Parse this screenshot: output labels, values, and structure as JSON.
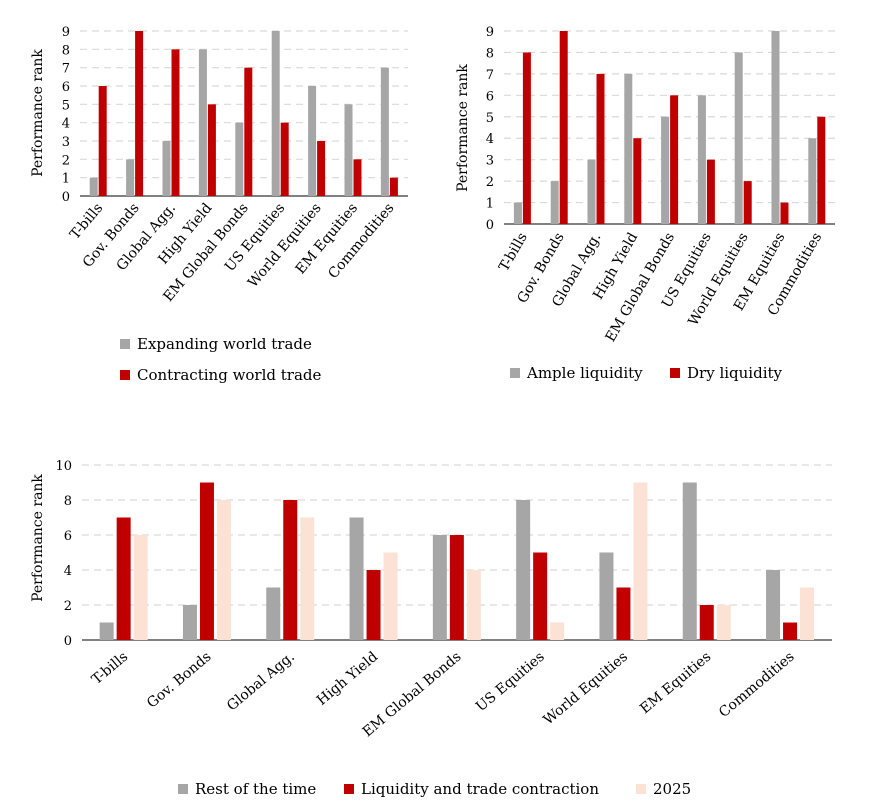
{
  "chart_data": [
    {
      "type": "bar",
      "ylabel": "Performance rank",
      "ylim": [
        0,
        9
      ],
      "yticks": [
        0,
        1,
        2,
        3,
        4,
        5,
        6,
        7,
        8,
        9
      ],
      "legend_position": "bottom",
      "categories": [
        "T-bills",
        "Gov. Bonds",
        "Global Agg.",
        "High Yield",
        "EM Global Bonds",
        "US Equities",
        "World Equities",
        "EM Equities",
        "Commodities"
      ],
      "series": [
        {
          "name": "Expanding world trade",
          "color": "#a6a6a6",
          "values": [
            1,
            2,
            3,
            8,
            4,
            9,
            6,
            5,
            7
          ]
        },
        {
          "name": "Contracting world trade",
          "color": "#c00000",
          "values": [
            6,
            9,
            8,
            5,
            7,
            4,
            3,
            2,
            1
          ]
        }
      ]
    },
    {
      "type": "bar",
      "ylabel": "Performance rank",
      "ylim": [
        0,
        9
      ],
      "yticks": [
        0,
        1,
        2,
        3,
        4,
        5,
        6,
        7,
        8,
        9
      ],
      "legend_position": "bottom",
      "categories": [
        "T-bills",
        "Gov. Bonds",
        "Global Agg.",
        "High Yield",
        "EM Global Bonds",
        "US Equities",
        "World Equities",
        "EM Equities",
        "Commodities"
      ],
      "series": [
        {
          "name": "Ample liquidity",
          "color": "#a6a6a6",
          "values": [
            1,
            2,
            3,
            7,
            5,
            6,
            8,
            9,
            4
          ]
        },
        {
          "name": "Dry liquidity",
          "color": "#c00000",
          "values": [
            8,
            9,
            7,
            4,
            6,
            3,
            2,
            1,
            5
          ]
        }
      ]
    },
    {
      "type": "bar",
      "ylabel": "Performance rank",
      "ylim": [
        0,
        10
      ],
      "yticks": [
        0,
        2,
        4,
        6,
        8,
        10
      ],
      "legend_position": "bottom",
      "categories": [
        "T-bills",
        "Gov. Bonds",
        "Global Agg.",
        "High Yield",
        "EM Global Bonds",
        "US Equities",
        "World Equities",
        "EM Equities",
        "Commodities"
      ],
      "series": [
        {
          "name": "Rest of the time",
          "color": "#a6a6a6",
          "values": [
            1,
            2,
            3,
            7,
            6,
            8,
            5,
            9,
            4
          ]
        },
        {
          "name": "Liquidity and trade contraction",
          "color": "#c00000",
          "values": [
            7,
            9,
            8,
            4,
            6,
            5,
            3,
            2,
            1
          ]
        },
        {
          "name": "2025",
          "color": "#fbe2d5",
          "values": [
            6,
            8,
            7,
            5,
            4,
            1,
            9,
            2,
            3
          ]
        }
      ]
    }
  ]
}
